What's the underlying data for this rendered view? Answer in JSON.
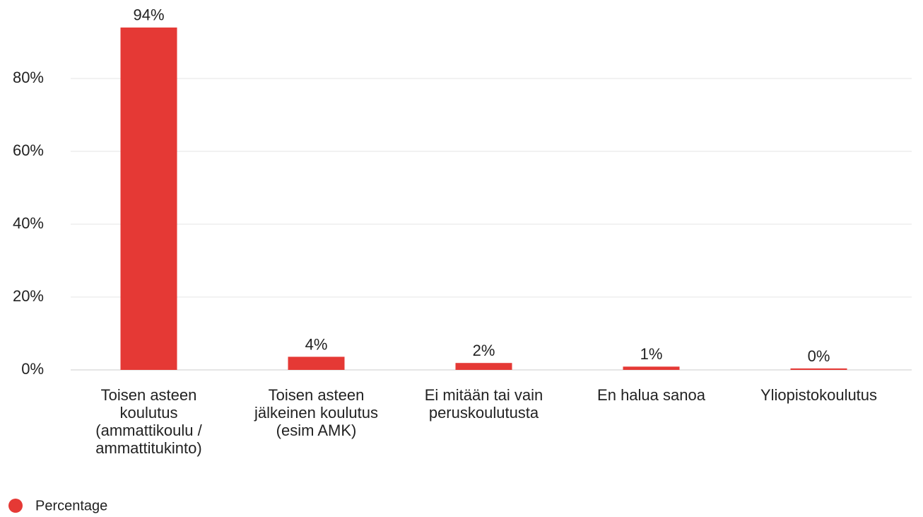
{
  "chart_data": {
    "type": "bar",
    "categories": [
      "Toisen asteen koulutus (ammattikoulu / ammattitukinto)",
      "Toisen asteen jälkeinen koulutus (esim AMK)",
      "Ei mitään tai vain peruskoulutusta",
      "En halua sanoa",
      "Yliopistokoulutus"
    ],
    "series": [
      {
        "name": "Percentage",
        "color": "#e53935",
        "values": [
          94,
          3.6,
          1.9,
          0.9,
          0.4
        ],
        "value_labels": [
          "94%",
          "4%",
          "2%",
          "1%",
          "0%"
        ]
      }
    ],
    "ylim": [
      0,
      100
    ],
    "yticks": [
      {
        "value": 0,
        "label": "0%"
      },
      {
        "value": 20,
        "label": "20%"
      },
      {
        "value": 40,
        "label": "40%"
      },
      {
        "value": 60,
        "label": "60%"
      },
      {
        "value": 80,
        "label": "80%"
      }
    ],
    "grid": true,
    "legend": "bottom-left"
  }
}
